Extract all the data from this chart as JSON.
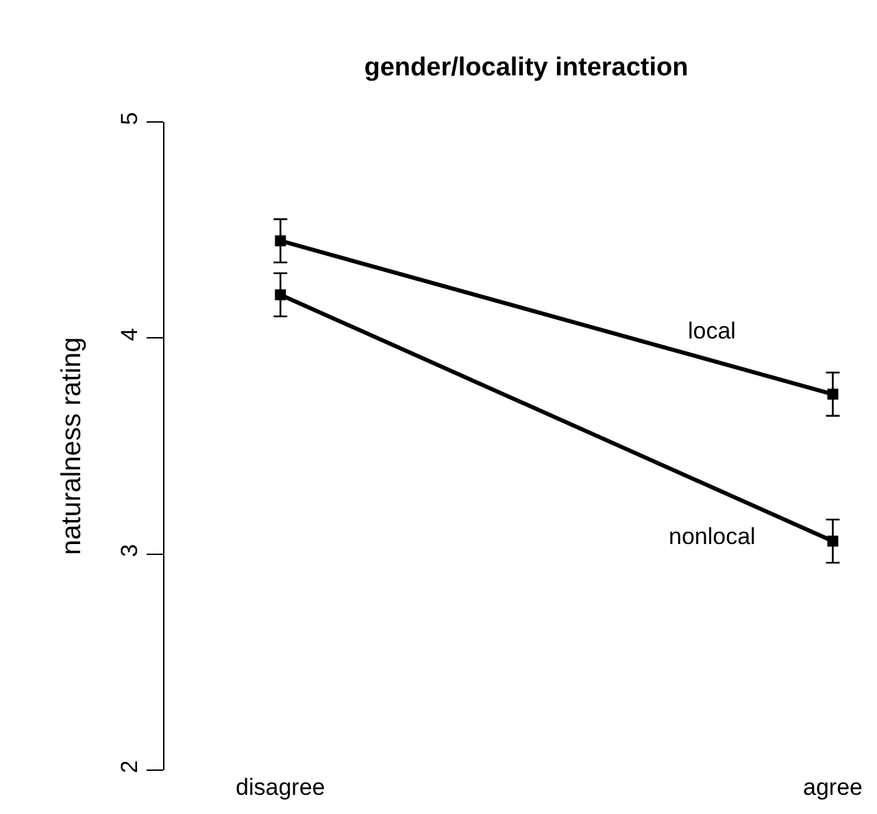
{
  "chart_data": {
    "type": "line",
    "title": "gender/locality interaction",
    "ylabel": "naturalness rating",
    "categories": [
      "disagree",
      "agree"
    ],
    "series": [
      {
        "name": "local",
        "color": "#000000",
        "values": [
          4.45,
          3.74
        ],
        "errors": [
          0.1,
          0.1
        ]
      },
      {
        "name": "nonlocal",
        "color": "#000000",
        "values": [
          4.2,
          3.06
        ],
        "errors": [
          0.1,
          0.1
        ]
      }
    ],
    "ylim": [
      2,
      5
    ],
    "yticks": [
      2,
      3,
      4,
      5
    ],
    "grid": false,
    "legend": false,
    "marker": "square",
    "line_style": "solid"
  }
}
